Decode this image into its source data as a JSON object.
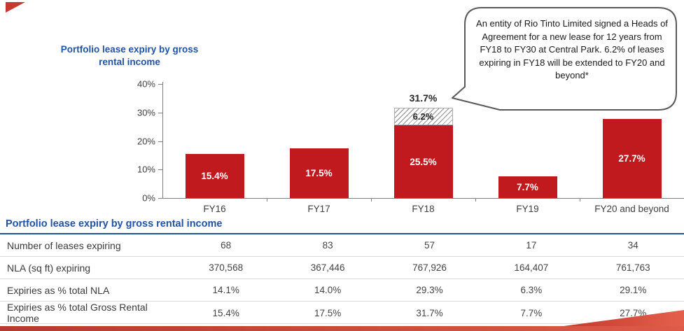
{
  "colors": {
    "bar_red": "#C11A1E",
    "title_blue": "#2053A4",
    "axis_gray": "#7F7F7F",
    "callout_border": "#595959",
    "table_rule": "#DBDBDB",
    "swoosh_dark": "#B73A2E",
    "swoosh_light": "#E4604C"
  },
  "chart": {
    "title": "Portfolio lease expiry by gross rental income",
    "callout": {
      "text": "An entity of Rio Tinto Limited signed a Heads of Agreement for a new lease for 12 years from FY18 to FY30 at Central Park. 6.2% of leases expiring in FY18 will be extended to FY20 and beyond*"
    }
  },
  "chart_data": {
    "type": "bar",
    "stacked": true,
    "title": "Portfolio lease expiry by gross rental income",
    "categories": [
      "FY16",
      "FY17",
      "FY18",
      "FY19",
      "FY20 and beyond"
    ],
    "series": [
      {
        "name": "Expiries as % total gross rental income",
        "style": "solid",
        "values": [
          15.4,
          17.5,
          25.5,
          7.7,
          27.7
        ],
        "labels": [
          "15.4%",
          "17.5%",
          "25.5%",
          "7.7%",
          "27.7%"
        ]
      },
      {
        "name": "FY18 expiries extended to FY20 and beyond",
        "style": "hatched",
        "values": [
          0,
          0,
          6.2,
          0,
          0
        ],
        "labels": [
          "",
          "",
          "6.2%",
          "",
          ""
        ]
      }
    ],
    "total_labels": [
      "",
      "",
      "31.7%",
      "",
      ""
    ],
    "xlabel": "",
    "ylabel": "",
    "y_ticks": [
      "0%",
      "10%",
      "20%",
      "30%",
      "40%"
    ],
    "ylim": [
      0,
      40
    ],
    "grid": false,
    "legend": "none"
  },
  "table": {
    "title": "Portfolio lease expiry by gross rental income",
    "columns": [
      "FY16",
      "FY17",
      "FY18",
      "FY19",
      "FY20 and beyond"
    ],
    "rows": [
      {
        "label": "Number of leases expiring",
        "values": [
          "68",
          "83",
          "57",
          "17",
          "34"
        ]
      },
      {
        "label": "NLA (sq ft) expiring",
        "values": [
          "370,568",
          "367,446",
          "767,926",
          "164,407",
          "761,763"
        ]
      },
      {
        "label": "Expiries as % total NLA",
        "values": [
          "14.1%",
          "14.0%",
          "29.3%",
          "6.3%",
          "29.1%"
        ]
      },
      {
        "label": "Expiries as % total Gross Rental Income",
        "values": [
          "15.4%",
          "17.5%",
          "31.7%",
          "7.7%",
          "27.7%"
        ]
      }
    ]
  }
}
